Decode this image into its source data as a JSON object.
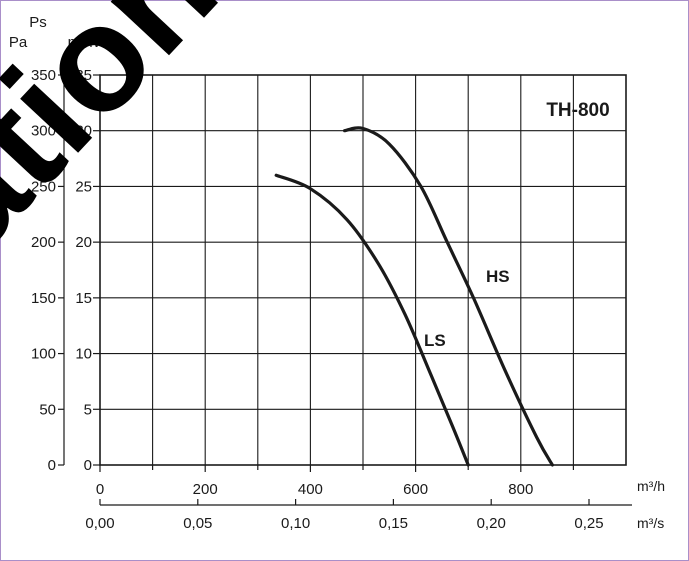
{
  "chart_data": {
    "type": "line",
    "title": "TH-800",
    "y_axis_left": {
      "symbol": "Ps",
      "units": [
        "Pa",
        "mmWG"
      ],
      "pa_ticks": [
        "0",
        "50",
        "100",
        "150",
        "200",
        "250",
        "300",
        "350"
      ],
      "mmwg_ticks": [
        "0",
        "5",
        "10",
        "15",
        "20",
        "25",
        "30",
        "35"
      ],
      "ylim_pa": [
        0,
        350
      ]
    },
    "x_axis_primary": {
      "unit": "m³/h",
      "ticks": [
        "0",
        "200",
        "400",
        "600",
        "800"
      ],
      "xlim": [
        0,
        1000
      ]
    },
    "x_axis_secondary": {
      "unit": "m³/s",
      "ticks": [
        "0,00",
        "0,05",
        "0,10",
        "0,15",
        "0,20",
        "0,25"
      ]
    },
    "grid": true,
    "series": [
      {
        "name": "LS",
        "x": [
          335,
          400,
          470,
          530,
          580,
          630,
          670,
          700
        ],
        "y": [
          260,
          248,
          220,
          180,
          135,
          80,
          35,
          0
        ]
      },
      {
        "name": "HS",
        "x": [
          465,
          500,
          550,
          610,
          660,
          710,
          770,
          830,
          860
        ],
        "y": [
          300,
          302,
          288,
          250,
          200,
          150,
          85,
          25,
          0
        ]
      }
    ],
    "watermark": "ation-c"
  }
}
